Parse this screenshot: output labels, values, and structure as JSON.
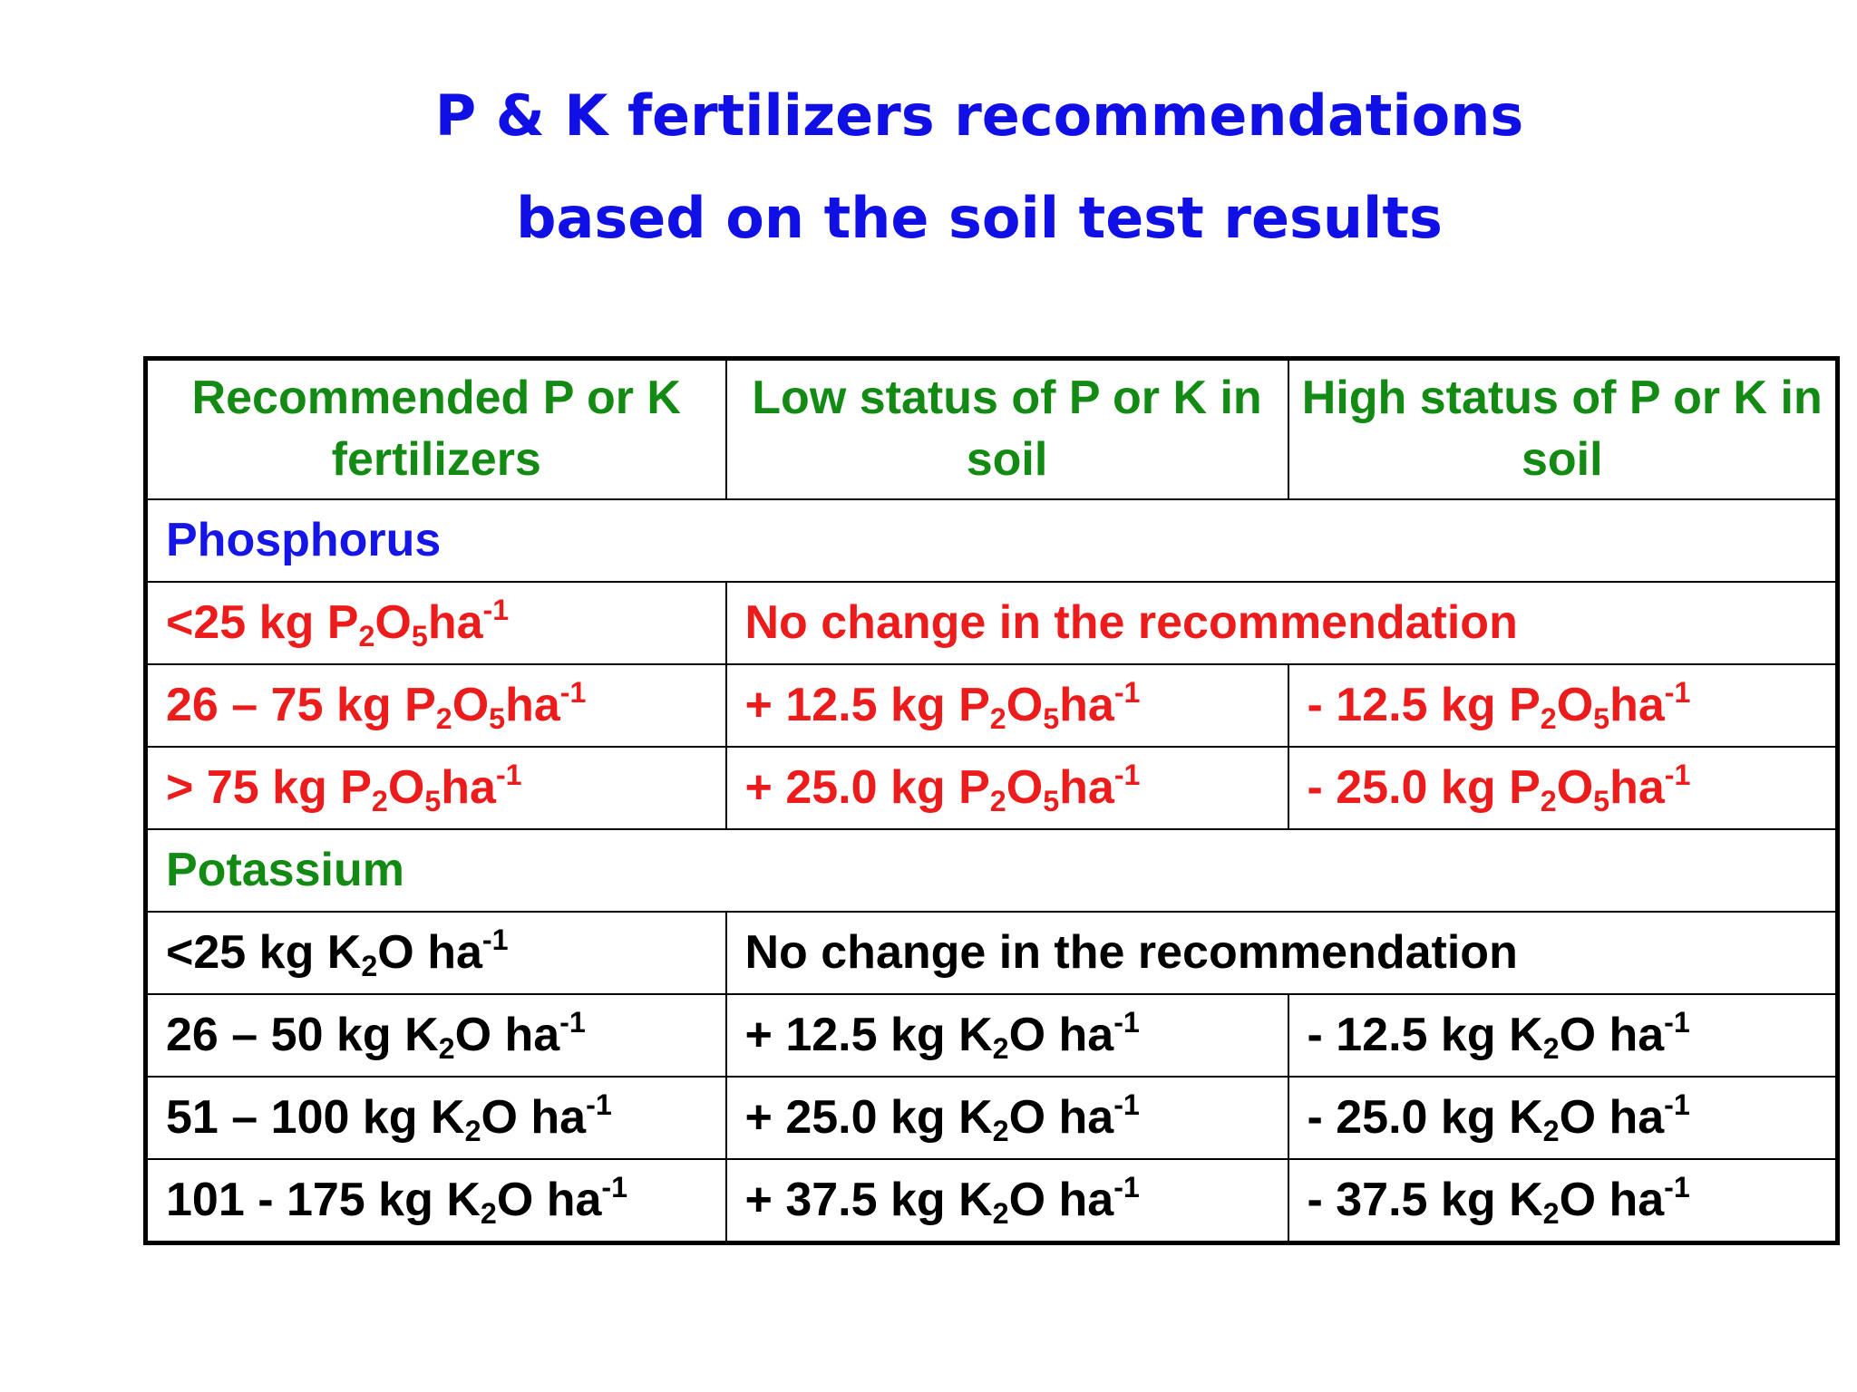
{
  "title": {
    "line1": "P & K fertilizers recommendations",
    "line2": "based on the soil test results"
  },
  "table": {
    "headers": [
      "Recommended P or K fertilizers",
      "Low status of P or K in soil",
      "High status of P or K in soil"
    ],
    "phosphorus": {
      "label": "Phosphorus",
      "unit_formula": {
        "p": "P",
        "p_sub": "2",
        "o": "O",
        "o_sub": "5",
        "ha": "ha",
        "exp": "-1"
      },
      "rows": [
        {
          "range": "<25 kg ",
          "merged": "No change in the recommendation"
        },
        {
          "range": "26 – 75 kg ",
          "low": "+ 12.5 kg ",
          "high": "- 12.5 kg "
        },
        {
          "range": "> 75 kg ",
          "low": "+ 25.0 kg ",
          "high": "- 25.0 kg "
        }
      ]
    },
    "potassium": {
      "label": "Potassium",
      "unit_formula": {
        "k": "K",
        "k_sub": "2",
        "o": "O",
        "ha": " ha",
        "exp": "-1"
      },
      "rows": [
        {
          "range": "<25 kg ",
          "merged": "No change in the recommendation"
        },
        {
          "range": "26 – 50 kg ",
          "low": "+ 12.5 kg ",
          "high": "- 12.5 kg "
        },
        {
          "range": "51 – 100 kg ",
          "low": "+ 25.0 kg ",
          "high": "- 25.0 kg "
        },
        {
          "range": "101 - 175 kg ",
          "low": "+ 37.5 kg ",
          "high": "- 37.5 kg "
        }
      ]
    }
  },
  "colors": {
    "title": "#1010e6",
    "header": "#138a13",
    "phosphorus_label": "#1515e8",
    "phosphorus_rows": "#ec1c1c",
    "potassium_label": "#138a13",
    "potassium_rows": "#000000"
  }
}
